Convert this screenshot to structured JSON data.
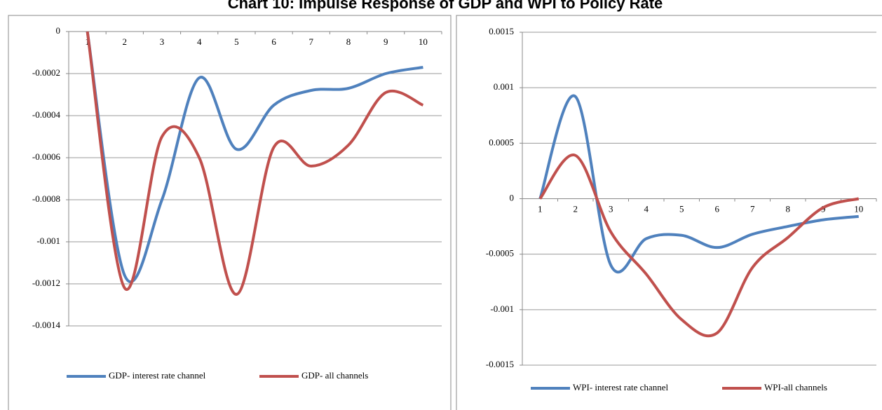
{
  "title": "Chart 10: Impulse Response of GDP and WPI to Policy Rate",
  "chart_data": [
    {
      "type": "line",
      "smooth": true,
      "grid": true,
      "legend": "bottom",
      "categories": [
        1,
        2,
        3,
        4,
        5,
        6,
        7,
        8,
        9,
        10
      ],
      "ylim": [
        -0.0014,
        0
      ],
      "yticks": [
        0,
        -0.0002,
        -0.0004,
        -0.0006,
        -0.0008,
        -0.001,
        -0.0012,
        -0.0014
      ],
      "series": [
        {
          "name": "GDP- interest rate channel",
          "color": "#4f81bd",
          "values": [
            0,
            -0.00116,
            -0.0008,
            -0.00022,
            -0.00056,
            -0.00035,
            -0.00028,
            -0.00027,
            -0.0002,
            -0.00017
          ]
        },
        {
          "name": "GDP- all channels",
          "color": "#c0504d",
          "values": [
            0,
            -0.00122,
            -0.0005,
            -0.0006,
            -0.00125,
            -0.00055,
            -0.00064,
            -0.00054,
            -0.00029,
            -0.00035
          ]
        }
      ]
    },
    {
      "type": "line",
      "smooth": true,
      "grid": true,
      "legend": "bottom",
      "categories": [
        1,
        2,
        3,
        4,
        5,
        6,
        7,
        8,
        9,
        10
      ],
      "ylim": [
        -0.0015,
        0.0015
      ],
      "yticks": [
        0.0015,
        0.001,
        0.0005,
        0,
        -0.0005,
        -0.001,
        -0.0015
      ],
      "series": [
        {
          "name": "WPI- interest rate channel",
          "color": "#4f81bd",
          "values": [
            0,
            0.00092,
            -0.0006,
            -0.00036,
            -0.00033,
            -0.00044,
            -0.00032,
            -0.00025,
            -0.00019,
            -0.00016
          ]
        },
        {
          "name": "WPI-all channels",
          "color": "#c0504d",
          "values": [
            0,
            0.00039,
            -0.0003,
            -0.00068,
            -0.00109,
            -0.00121,
            -0.00062,
            -0.00035,
            -8e-05,
            0
          ]
        }
      ]
    }
  ]
}
